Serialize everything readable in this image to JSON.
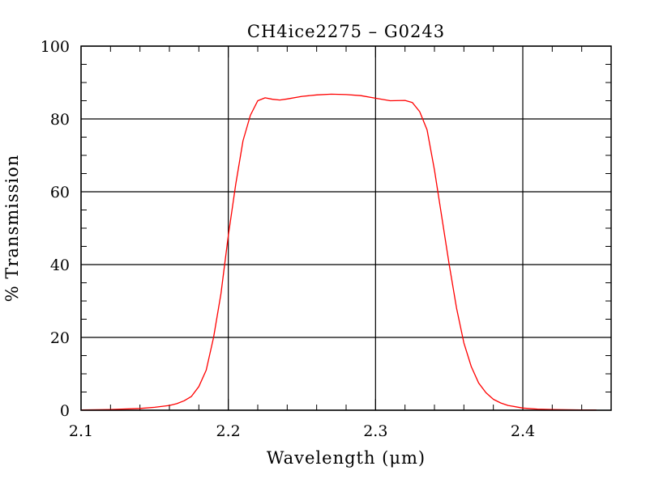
{
  "chart_data": {
    "type": "line",
    "title": "CH4ice2275 – G0243",
    "xlabel": "Wavelength (μm)",
    "ylabel": "% Transmission",
    "xlim": [
      2.1,
      2.46
    ],
    "ylim": [
      0,
      100
    ],
    "xticks": [
      2.1,
      2.2,
      2.3,
      2.4
    ],
    "xtick_labels": [
      "2.1",
      "2.2",
      "2.3",
      "2.4"
    ],
    "yticks": [
      0,
      20,
      40,
      60,
      80,
      100
    ],
    "ytick_labels": [
      "0",
      "20",
      "40",
      "60",
      "80",
      "100"
    ],
    "grid": true,
    "series": [
      {
        "color": "#ff0000",
        "x": [
          2.1,
          2.12,
          2.14,
          2.15,
          2.16,
          2.165,
          2.17,
          2.175,
          2.18,
          2.185,
          2.19,
          2.195,
          2.2,
          2.205,
          2.21,
          2.215,
          2.22,
          2.225,
          2.23,
          2.235,
          2.24,
          2.25,
          2.26,
          2.27,
          2.28,
          2.29,
          2.3,
          2.31,
          2.32,
          2.325,
          2.33,
          2.335,
          2.34,
          2.345,
          2.35,
          2.355,
          2.36,
          2.365,
          2.37,
          2.375,
          2.38,
          2.385,
          2.39,
          2.4,
          2.41,
          2.42,
          2.44,
          2.45
        ],
        "y": [
          0.1,
          0.2,
          0.5,
          0.8,
          1.3,
          1.8,
          2.6,
          3.8,
          6.5,
          11,
          20,
          32,
          48,
          62,
          74,
          81,
          85,
          85.8,
          85.4,
          85.2,
          85.5,
          86.2,
          86.6,
          86.8,
          86.7,
          86.4,
          85.7,
          85.0,
          85.1,
          84.5,
          82,
          77,
          66,
          53,
          40,
          28,
          18.5,
          12,
          7.5,
          4.8,
          3.0,
          2.0,
          1.3,
          0.6,
          0.3,
          0.2,
          0.1,
          0.1
        ]
      }
    ]
  }
}
